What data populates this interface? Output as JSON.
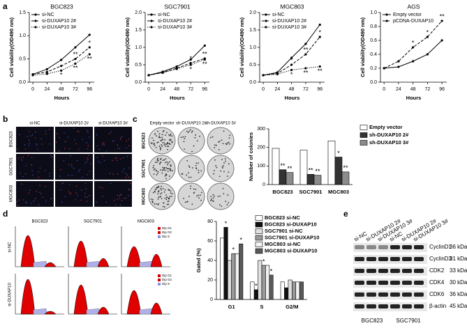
{
  "panel_labels": [
    "a",
    "b",
    "c",
    "d",
    "e"
  ],
  "chart_data": [
    {
      "type": "line",
      "title": "BGC823",
      "xlabel": "Hours",
      "ylabel": "Cell viability(OD490 nm)",
      "x": [
        0,
        24,
        48,
        72,
        96
      ],
      "xlim": [
        -6,
        104
      ],
      "xticks": [
        0,
        24,
        48,
        72,
        96
      ],
      "ylim": [
        0,
        1.5
      ],
      "yticks": [
        {
          "value": 0,
          "label": "0.0"
        },
        0.5,
        {
          "value": 1,
          "label": "1.0"
        },
        1.5
      ],
      "series": [
        {
          "name": "si-NC",
          "color": "#000000",
          "style": "solid",
          "values": [
            0.17,
            0.28,
            0.48,
            0.75,
            1.02
          ]
        },
        {
          "name": "si-DUXAP10 2#",
          "color": "#000000",
          "style": "dashed",
          "values": [
            0.17,
            0.22,
            0.35,
            0.5,
            0.75
          ]
        },
        {
          "name": "si-DUXAP10 3#",
          "color": "#000000",
          "style": "dotted",
          "values": [
            0.15,
            0.18,
            0.25,
            0.4,
            0.6
          ]
        }
      ],
      "annotations": [
        {
          "text": "*",
          "series": 1,
          "index": 2
        },
        {
          "text": "**",
          "series": 1,
          "index": 3
        },
        {
          "text": "*",
          "series": 1,
          "index": 4
        },
        {
          "text": "*",
          "series": 2,
          "index": 2
        },
        {
          "text": "**",
          "series": 2,
          "index": 3
        },
        {
          "text": "**",
          "series": 2,
          "index": 4
        }
      ]
    },
    {
      "type": "line",
      "title": "SGC7901",
      "xlabel": "Hours",
      "ylabel": "Cell viability(OD490 nm)",
      "x": [
        0,
        24,
        48,
        72,
        96
      ],
      "xlim": [
        -6,
        104
      ],
      "xticks": [
        0,
        24,
        48,
        72,
        96
      ],
      "ylim": [
        0,
        2
      ],
      "yticks": [
        {
          "value": 0,
          "label": "0.0"
        },
        0.5,
        {
          "value": 1,
          "label": "1.0"
        },
        1.5,
        {
          "value": 2,
          "label": "2.0"
        }
      ],
      "series": [
        {
          "name": "si-NC",
          "color": "#000000",
          "style": "solid",
          "values": [
            0.2,
            0.3,
            0.45,
            0.65,
            1.05
          ]
        },
        {
          "name": "si-DUXAP10 2#",
          "color": "#000000",
          "style": "dashed",
          "values": [
            0.2,
            0.28,
            0.4,
            0.55,
            0.68
          ]
        },
        {
          "name": "si-DUXAP10 3#",
          "color": "#000000",
          "style": "dotted",
          "values": [
            0.2,
            0.27,
            0.38,
            0.5,
            0.65
          ]
        }
      ],
      "annotations": [
        {
          "text": "*",
          "series": 1,
          "index": 3
        },
        {
          "text": "**",
          "series": 1,
          "index": 4
        },
        {
          "text": "*",
          "series": 2,
          "index": 3
        },
        {
          "text": "**",
          "series": 2,
          "index": 4
        }
      ]
    },
    {
      "type": "line",
      "title": "MGC803",
      "xlabel": "Hours",
      "ylabel": "Cell viability(OD490 nm)",
      "x": [
        0,
        24,
        48,
        72,
        96
      ],
      "xlim": [
        -6,
        104
      ],
      "xticks": [
        0,
        24,
        48,
        72,
        96
      ],
      "ylim": [
        0,
        2
      ],
      "yticks": [
        {
          "value": 0,
          "label": "0.0"
        },
        0.5,
        {
          "value": 1,
          "label": "1.0"
        },
        1.5,
        {
          "value": 2,
          "label": "2.0"
        }
      ],
      "series": [
        {
          "name": "si-NC",
          "color": "#000000",
          "style": "solid",
          "values": [
            0.2,
            0.28,
            0.7,
            1.1,
            1.65
          ]
        },
        {
          "name": "si-DUXAP10 2#",
          "color": "#000000",
          "style": "dashed",
          "values": [
            0.2,
            0.25,
            0.5,
            0.8,
            1.3
          ]
        },
        {
          "name": "si-DUXAP10 3#",
          "color": "#000000",
          "style": "dotted",
          "values": [
            0.2,
            0.23,
            0.35,
            0.4,
            0.45
          ]
        }
      ],
      "annotations": [
        {
          "text": "*",
          "series": 1,
          "index": 2
        },
        {
          "text": "**",
          "series": 1,
          "index": 3
        },
        {
          "text": "*",
          "series": 1,
          "index": 4
        },
        {
          "text": "*",
          "series": 2,
          "index": 2
        },
        {
          "text": "**",
          "series": 2,
          "index": 3
        },
        {
          "text": "**",
          "series": 2,
          "index": 4
        }
      ]
    },
    {
      "type": "line",
      "title": "AGS",
      "xlabel": "Hours",
      "ylabel": "Cell viability(OD490 nm)",
      "x": [
        0,
        24,
        48,
        72,
        96
      ],
      "xlim": [
        -6,
        104
      ],
      "xticks": [
        0,
        24,
        48,
        72,
        96
      ],
      "ylim": [
        0,
        1
      ],
      "yticks": [
        {
          "value": 0,
          "label": "0.0"
        },
        0.2,
        0.4,
        0.6,
        0.8,
        {
          "value": 1,
          "label": "1.0"
        }
      ],
      "series": [
        {
          "name": "Empty vector",
          "color": "#000000",
          "style": "solid",
          "values": [
            0.2,
            0.22,
            0.3,
            0.4,
            0.6
          ]
        },
        {
          "name": "pCDNA-DUXAP10",
          "color": "#000000",
          "style": "dashed",
          "values": [
            0.2,
            0.3,
            0.5,
            0.65,
            0.88
          ]
        }
      ],
      "annotations": [
        {
          "text": "*",
          "series": 1,
          "index": 2
        },
        {
          "text": "*",
          "series": 1,
          "index": 3
        },
        {
          "text": "**",
          "series": 1,
          "index": 4
        }
      ]
    },
    {
      "type": "bar",
      "ylabel": "Number of colonies",
      "categories": [
        "BGC823",
        "SGC7901",
        "MGC803"
      ],
      "ylim": [
        0,
        300
      ],
      "yticks": [
        0,
        100,
        200,
        300
      ],
      "series": [
        {
          "name": "Empty vector",
          "color": "#ffffff",
          "values": [
            195,
            185,
            235
          ]
        },
        {
          "name": "sh-DUXAP10 2#",
          "color": "#333333",
          "values": [
            80,
            55,
            148
          ]
        },
        {
          "name": "sh-DUXAP10 3#",
          "color": "#8c8c8c",
          "values": [
            65,
            50,
            68
          ]
        }
      ],
      "annotations": [
        {
          "text": "**",
          "series": 1,
          "index": 0
        },
        {
          "text": "**",
          "series": 1,
          "index": 1
        },
        {
          "text": "*",
          "series": 1,
          "index": 2
        },
        {
          "text": "**",
          "series": 2,
          "index": 0
        },
        {
          "text": "**",
          "series": 2,
          "index": 1
        },
        {
          "text": "**",
          "series": 2,
          "index": 2
        }
      ]
    },
    {
      "type": "bar",
      "ylabel": "Gated (%)",
      "categories": [
        "G1",
        "S",
        "G2/M"
      ],
      "ylim": [
        0,
        80
      ],
      "yticks": [
        0,
        20,
        40,
        60,
        80
      ],
      "series": [
        {
          "name": "BGC823 si-NC",
          "color": "#ffffff",
          "values": [
            63,
            18,
            18
          ]
        },
        {
          "name": "BGC823 si-DUXAP10",
          "color": "#111111",
          "values": [
            74,
            10,
            12
          ]
        },
        {
          "name": "SGC7901 si-NC",
          "color": "#e0e0e0",
          "values": [
            40,
            40,
            20
          ]
        },
        {
          "name": "SGC7901 si-DUXAP10",
          "color": "#9a9a9a",
          "values": [
            47,
            35,
            18
          ]
        },
        {
          "name": "MGC803 si-NC",
          "color": "#f2f2f2",
          "values": [
            47,
            35,
            18
          ]
        },
        {
          "name": "MGC803 si-DUXAP10",
          "color": "#5a5a5a",
          "values": [
            57,
            25,
            18
          ]
        }
      ],
      "annotations": [
        {
          "text": "*",
          "series": 1,
          "index": 0
        },
        {
          "text": "*",
          "series": 1,
          "index": 1
        },
        {
          "text": "*",
          "series": 3,
          "index": 0
        },
        {
          "text": "*",
          "series": 3,
          "index": 1
        },
        {
          "text": "*",
          "series": 5,
          "index": 0
        },
        {
          "text": "*",
          "series": 5,
          "index": 1
        }
      ]
    }
  ],
  "images_b": {
    "columns": [
      "si-NC",
      "si-DUXAP10 2#",
      "si-DUXAP10 3#"
    ],
    "rows": [
      "BGC823",
      "SGC7901",
      "MGC803"
    ]
  },
  "plates_c": {
    "columns": [
      "Empty vector",
      "sh-DUXAP10 2#",
      "sh-DUXAP10 3#"
    ],
    "rows": [
      "BGC823",
      "SGC7901",
      "MGC803"
    ]
  },
  "flow_d": {
    "columns": [
      "BGC823",
      "SGC7901",
      "MGC803"
    ],
    "rows": [
      "si-NC",
      "si-DUXAP10"
    ],
    "legend": [
      "Dip G1",
      "Dip G2",
      "Dip S"
    ]
  },
  "blot_e": {
    "lanes": [
      "si-NC",
      "si-DUXAP10 2#",
      "si-DUXAP10 3#",
      "si-NC",
      "si-DUXAP10 2#",
      "si-DUXAP10 3#"
    ],
    "bands": [
      {
        "name": "CyclinD1",
        "size": "36 kDa"
      },
      {
        "name": "CyclinD3",
        "size": "31 kDa"
      },
      {
        "name": "CDK2",
        "size": "33 kDa"
      },
      {
        "name": "CDK4",
        "size": "30 kDa"
      },
      {
        "name": "CDK6",
        "size": "36 kDa"
      },
      {
        "name": "β-actin",
        "size": "45 kDa"
      }
    ],
    "groups": [
      "BGC823",
      "SGC7901"
    ]
  }
}
